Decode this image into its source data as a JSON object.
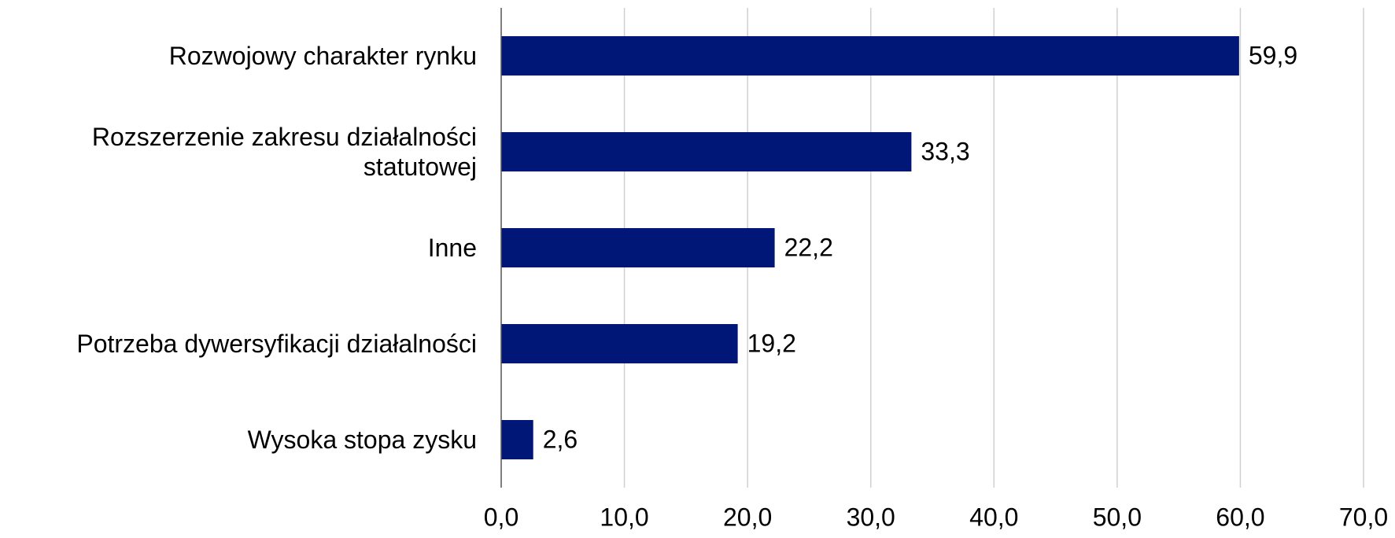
{
  "chart_data": {
    "type": "bar",
    "orientation": "horizontal",
    "categories": [
      "Rozwojowy charakter rynku",
      "Rozszerzenie zakresu działalności statutowej",
      "Inne",
      "Potrzeba dywersyfikacji działalności",
      "Wysoka stopa zysku"
    ],
    "values": [
      59.9,
      33.3,
      22.2,
      19.2,
      2.6
    ],
    "value_labels": [
      "59,9",
      "33,3",
      "22,2",
      "19,2",
      "2,6"
    ],
    "color": "#001777",
    "xlim": [
      0,
      70
    ],
    "xticks": [
      {
        "value": 0,
        "label": "0,0"
      },
      {
        "value": 10,
        "label": "10,0"
      },
      {
        "value": 20,
        "label": "20,0"
      },
      {
        "value": 30,
        "label": "30,0"
      },
      {
        "value": 40,
        "label": "40,0"
      },
      {
        "value": 50,
        "label": "50,0"
      },
      {
        "value": 60,
        "label": "60,0"
      },
      {
        "value": 70,
        "label": "70,0"
      }
    ],
    "grid": true
  }
}
